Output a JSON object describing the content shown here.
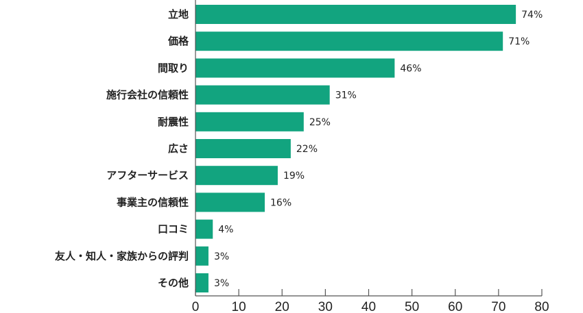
{
  "chart_data": {
    "type": "bar",
    "orientation": "horizontal",
    "categories": [
      "立地",
      "価格",
      "間取り",
      "施行会社の信頼性",
      "耐震性",
      "広さ",
      "アフターサービス",
      "事業主の信頼性",
      "口コミ",
      "友人・知人・家族からの評判",
      "その他"
    ],
    "values": [
      74,
      71,
      46,
      31,
      25,
      22,
      19,
      16,
      4,
      3,
      3
    ],
    "value_labels": [
      "74%",
      "71%",
      "46%",
      "31%",
      "25%",
      "22%",
      "19%",
      "16%",
      "4%",
      "3%",
      "3%"
    ],
    "xlim": [
      0,
      80
    ],
    "xticks": [
      0,
      10,
      20,
      30,
      40,
      50,
      60,
      70,
      80
    ],
    "xtick_labels": [
      "0",
      "10",
      "20",
      "30",
      "40",
      "50",
      "60",
      "70",
      "80"
    ],
    "title": "",
    "xlabel": "",
    "ylabel": "",
    "grid": false,
    "bar_color": "#12a47f"
  }
}
